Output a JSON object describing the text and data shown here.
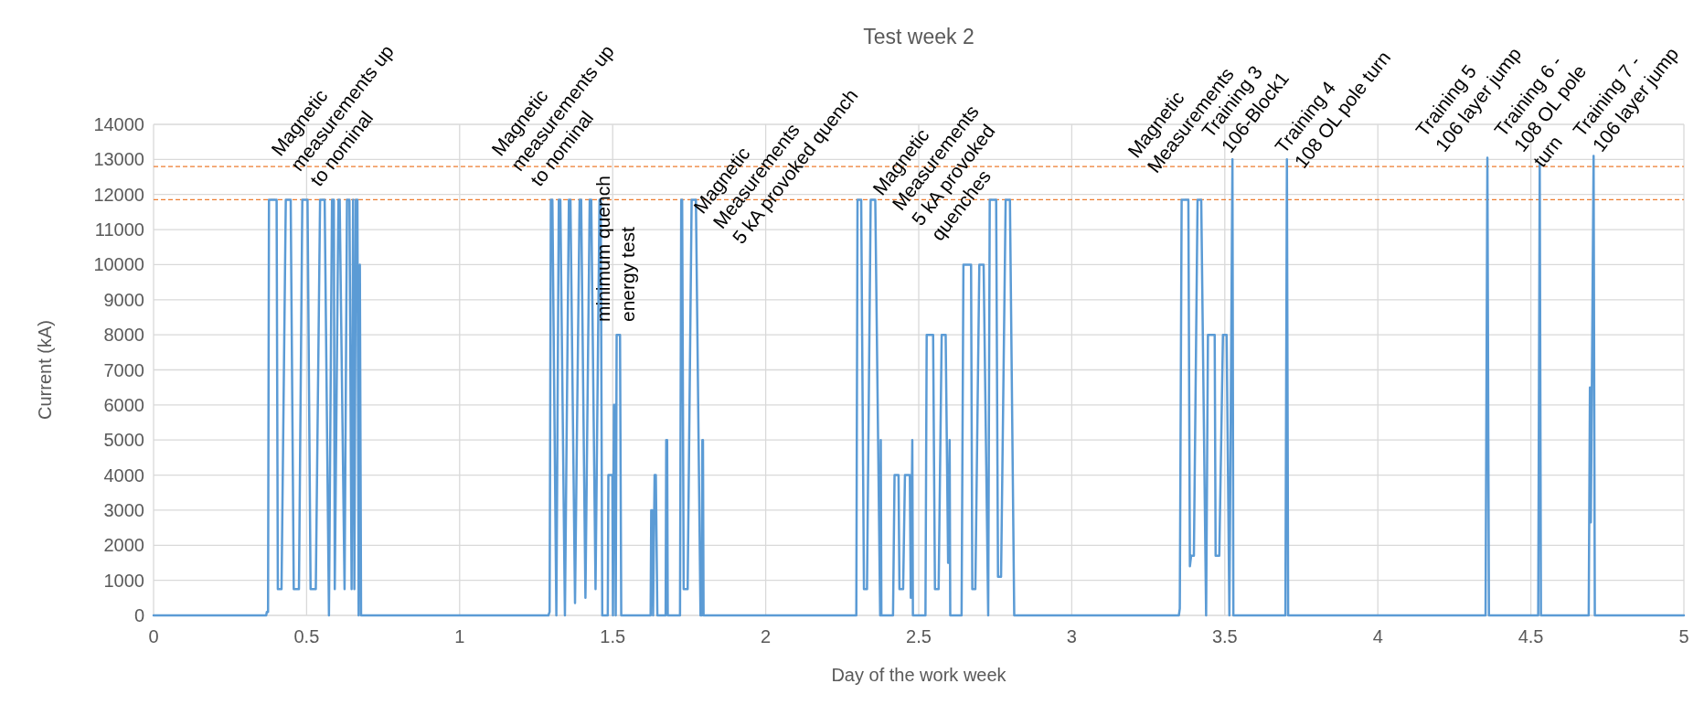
{
  "chart_data": {
    "type": "line",
    "title": "Test week 2",
    "xlabel": "Day of the work week",
    "ylabel": "Current (kA)",
    "xlim": [
      0,
      5
    ],
    "xticks": [
      0,
      0.5,
      1,
      1.5,
      2,
      2.5,
      3,
      3.5,
      4,
      4.5,
      5
    ],
    "ylim": [
      0,
      14000
    ],
    "yticks": [
      0,
      1000,
      2000,
      3000,
      4000,
      5000,
      6000,
      7000,
      8000,
      9000,
      10000,
      11000,
      12000,
      13000,
      14000
    ],
    "grid": true,
    "marker": "none",
    "line_style": "solid",
    "ref_lines": [
      {
        "axis": "y",
        "value": 12800,
        "color": "#ed7d31",
        "line_style": "dashed"
      },
      {
        "axis": "y",
        "value": 11850,
        "color": "#ed7d31",
        "line_style": "dashed"
      }
    ],
    "annotations": [
      "Magnetic\nmeasurements up\nto nominal",
      "Magnetic\nmeasurements up\nto nominal",
      "minimum quench\nenergy test",
      "Magnetic\nMeasurements\n5 kA provoked quench",
      "Magnetic\nMeasurements\n5 kA provoked\nquenches",
      "Magnetic\nMeasurements",
      "Training 3\n106-Block1",
      "Training 4\n108 OL pole turn",
      "Training 5\n106 layer jump",
      "Training 6 -\n108 OL pole\nturn",
      "Training 7 -\n106 layer jump"
    ],
    "series": [
      {
        "color": "#5b9bd5",
        "x": [
          0,
          0.368,
          0.37,
          0.374,
          0.377,
          0.402,
          0.406,
          0.418,
          0.432,
          0.448,
          0.458,
          0.475,
          0.486,
          0.503,
          0.513,
          0.53,
          0.544,
          0.559,
          0.573,
          0.583,
          0.589,
          0.592,
          0.604,
          0.608,
          0.624,
          0.632,
          0.64,
          0.647,
          0.652,
          0.656,
          0.661,
          0.666,
          0.67,
          0.674,
          0.678,
          1.29,
          1.294,
          1.298,
          1.303,
          1.316,
          1.324,
          1.329,
          1.344,
          1.357,
          1.362,
          1.377,
          1.392,
          1.397,
          1.411,
          1.425,
          1.43,
          1.444,
          1.457,
          1.461,
          1.466,
          1.484,
          1.486,
          1.499,
          1.501,
          1.504,
          1.508,
          1.51,
          1.513,
          1.524,
          1.528,
          1.624,
          1.626,
          1.629,
          1.632,
          1.637,
          1.641,
          1.646,
          1.673,
          1.675,
          1.678,
          1.68,
          1.72,
          1.724,
          1.727,
          1.732,
          1.745,
          1.758,
          1.772,
          1.787,
          1.791,
          1.793,
          1.795,
          1.797,
          2.296,
          2.3,
          2.312,
          2.321,
          2.331,
          2.343,
          2.358,
          2.374,
          2.376,
          2.378,
          2.416,
          2.421,
          2.434,
          2.437,
          2.449,
          2.455,
          2.471,
          2.474,
          2.479,
          2.481,
          2.522,
          2.526,
          2.547,
          2.553,
          2.565,
          2.575,
          2.588,
          2.596,
          2.601,
          2.603,
          2.64,
          2.646,
          2.671,
          2.675,
          2.685,
          2.698,
          2.712,
          2.727,
          2.732,
          2.753,
          2.759,
          2.769,
          2.784,
          2.798,
          2.812,
          3.35,
          3.353,
          3.359,
          3.381,
          3.386,
          3.39,
          3.399,
          3.411,
          3.423,
          3.439,
          3.445,
          3.467,
          3.47,
          3.482,
          3.494,
          3.506,
          3.515,
          3.525,
          3.528,
          3.698,
          3.703,
          3.707,
          4.352,
          4.358,
          4.363,
          4.524,
          4.529,
          4.533,
          4.689,
          4.693,
          4.696,
          4.705,
          4.709,
          5
        ],
        "values": [
          0,
          0,
          100,
          100,
          11850,
          11850,
          750,
          750,
          11850,
          11850,
          750,
          750,
          11850,
          11850,
          750,
          750,
          11850,
          11850,
          0,
          11850,
          11850,
          750,
          11850,
          11850,
          750,
          11850,
          11850,
          750,
          11850,
          750,
          11850,
          11850,
          0,
          10000,
          0,
          0,
          100,
          11850,
          11850,
          0,
          11850,
          11850,
          0,
          11850,
          11850,
          350,
          11850,
          11850,
          500,
          11850,
          11850,
          750,
          11850,
          11850,
          0,
          0,
          4000,
          4000,
          0,
          6000,
          6000,
          0,
          8000,
          8000,
          0,
          0,
          3000,
          3000,
          0,
          4000,
          4000,
          0,
          0,
          5000,
          5000,
          0,
          0,
          11850,
          11850,
          750,
          750,
          11850,
          11850,
          0,
          0,
          5000,
          5000,
          0,
          0,
          11850,
          11850,
          750,
          750,
          11850,
          11850,
          0,
          5000,
          0,
          0,
          4000,
          4000,
          750,
          750,
          4000,
          4000,
          500,
          5000,
          0,
          0,
          8000,
          8000,
          750,
          750,
          8000,
          8000,
          1500,
          5000,
          0,
          0,
          10000,
          10000,
          750,
          750,
          10000,
          10000,
          0,
          11850,
          11850,
          1100,
          1100,
          11850,
          11850,
          0,
          0,
          200,
          11850,
          11850,
          1400,
          1700,
          1700,
          11850,
          11850,
          0,
          8000,
          8000,
          1700,
          1700,
          8000,
          8000,
          0,
          13000,
          0,
          0,
          13000,
          0,
          0,
          13050,
          0,
          0,
          12850,
          0,
          0,
          6500,
          2650,
          13100,
          0,
          0
        ]
      }
    ]
  }
}
